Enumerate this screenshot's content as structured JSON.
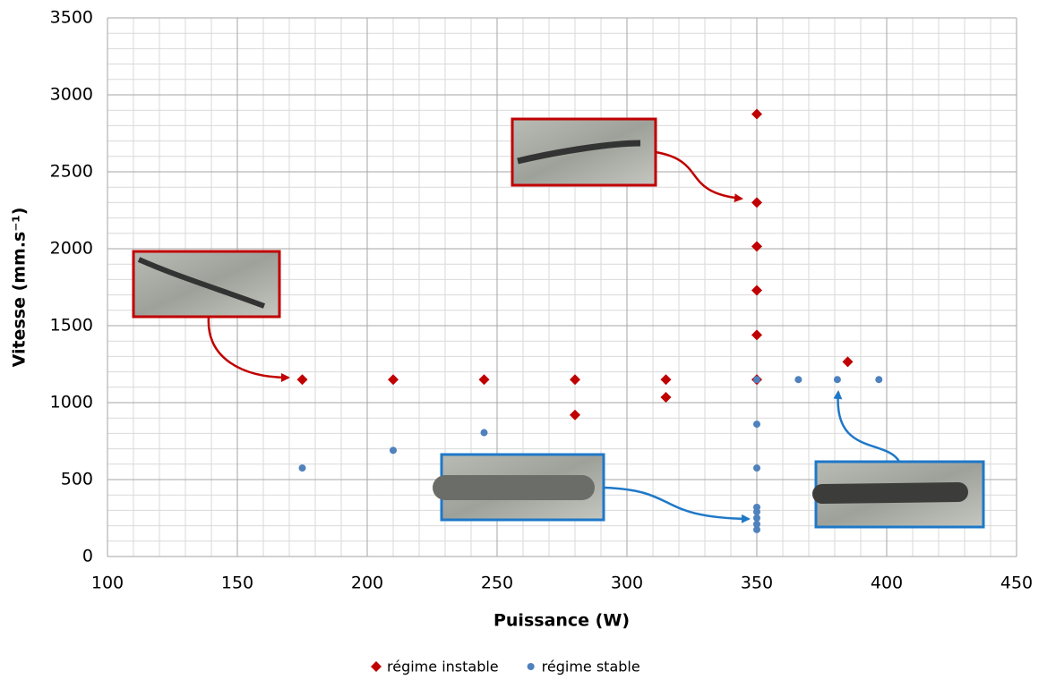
{
  "chart_data": {
    "type": "scatter",
    "x_label": "Puissance (W)",
    "y_label": "Vitesse (mm.s⁻¹)",
    "xlim": [
      100,
      450
    ],
    "xticks": [
      100,
      150,
      200,
      250,
      300,
      350,
      400,
      450
    ],
    "ylim": [
      0,
      3500
    ],
    "yticks": [
      0,
      500,
      1000,
      1500,
      2000,
      2500,
      3000,
      3500
    ],
    "grid": true,
    "x_minor_step": 10,
    "y_minor_step": 100,
    "legend": "bottom",
    "series": [
      {
        "name": "régime instable",
        "color": "#c00000",
        "marker": "diamond",
        "x": [
          175,
          210,
          245,
          280,
          280,
          315,
          315,
          350,
          350,
          350,
          350,
          350,
          350,
          385
        ],
        "values": [
          1150,
          1150,
          1150,
          1150,
          920,
          1150,
          1035,
          1150,
          1440,
          1730,
          2015,
          2300,
          2875,
          1265
        ]
      },
      {
        "name": "régime stable",
        "color": "#4f81bd",
        "marker": "circle",
        "x": [
          175,
          210,
          245,
          350,
          366,
          381,
          397,
          350,
          350,
          350,
          350,
          350,
          350,
          350
        ],
        "values": [
          575,
          690,
          805,
          1150,
          1150,
          1150,
          1150,
          860,
          575,
          320,
          290,
          250,
          210,
          175
        ]
      }
    ]
  }
}
